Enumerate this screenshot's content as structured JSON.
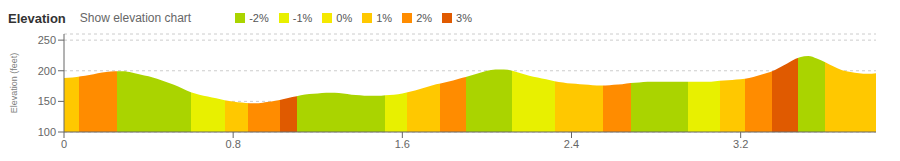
{
  "chart_data": {
    "type": "area",
    "title": "Elevation",
    "subtitle": "Show elevation chart",
    "y_label": "Elevation (feet)",
    "x": [
      0,
      0.04,
      0.08,
      0.12,
      0.16,
      0.2,
      0.24,
      0.28,
      0.32,
      0.36,
      0.4,
      0.44,
      0.48,
      0.52,
      0.56,
      0.6,
      0.64,
      0.68,
      0.72,
      0.76,
      0.8,
      0.84,
      0.88,
      0.92,
      0.96,
      1,
      1.04,
      1.08,
      1.12,
      1.16,
      1.2,
      1.24,
      1.28,
      1.32,
      1.36,
      1.4,
      1.44,
      1.48,
      1.52,
      1.56,
      1.6,
      1.64,
      1.68,
      1.72,
      1.76,
      1.8,
      1.84,
      1.88,
      1.92,
      1.96,
      2,
      2.04,
      2.08,
      2.12,
      2.16,
      2.2,
      2.24,
      2.28,
      2.32,
      2.36,
      2.4,
      2.44,
      2.48,
      2.52,
      2.56,
      2.6,
      2.64,
      2.68,
      2.72,
      2.76,
      2.8,
      2.84,
      2.88,
      2.92,
      2.96,
      3,
      3.04,
      3.08,
      3.12,
      3.16,
      3.2,
      3.24,
      3.28,
      3.32,
      3.36,
      3.4,
      3.44,
      3.48,
      3.52,
      3.56,
      3.6,
      3.64,
      3.68,
      3.72,
      3.76,
      3.8,
      3.84
    ],
    "values": [
      188,
      189,
      191,
      193,
      196,
      198,
      199,
      199,
      197,
      194,
      191,
      187,
      182,
      177,
      171,
      165,
      161,
      158,
      155,
      152,
      150,
      148,
      147,
      147,
      149,
      151,
      154,
      157,
      160,
      162,
      163,
      164,
      164,
      163,
      161,
      160,
      159,
      159,
      160,
      161,
      163,
      166,
      170,
      174,
      178,
      181,
      184,
      188,
      192,
      196,
      200,
      202,
      202,
      200,
      196,
      192,
      189,
      186,
      183,
      181,
      179,
      178,
      177,
      176,
      176,
      177,
      178,
      180,
      181,
      182,
      182,
      182,
      182,
      182,
      182,
      182,
      182,
      183,
      184,
      185,
      186,
      188,
      192,
      196,
      201,
      208,
      216,
      222,
      224,
      220,
      214,
      207,
      201,
      198,
      196,
      195,
      196
    ],
    "xlim": [
      0,
      3.84
    ],
    "xticks": [
      0,
      0.8,
      1.6,
      2.4,
      3.2
    ],
    "ylim": [
      100,
      260
    ],
    "yticks": [
      100,
      150,
      200,
      250
    ],
    "grid": true,
    "legend": "top",
    "legend_entries": [
      {
        "label": "-2%",
        "color": "#aad400"
      },
      {
        "label": "-1%",
        "color": "#e8f000"
      },
      {
        "label": "0%",
        "color": "#f5e800"
      },
      {
        "label": "1%",
        "color": "#ffc800"
      },
      {
        "label": "2%",
        "color": "#ff8c00"
      },
      {
        "label": "3%",
        "color": "#e05a00"
      }
    ],
    "segments": [
      {
        "x0": 0,
        "x1": 0.07,
        "color": "#ffc800"
      },
      {
        "x0": 0.07,
        "x1": 0.25,
        "color": "#ff8c00"
      },
      {
        "x0": 0.25,
        "x1": 0.6,
        "color": "#aad400"
      },
      {
        "x0": 0.6,
        "x1": 0.76,
        "color": "#e8f000"
      },
      {
        "x0": 0.76,
        "x1": 0.87,
        "color": "#ffc800"
      },
      {
        "x0": 0.87,
        "x1": 1.02,
        "color": "#ff8c00"
      },
      {
        "x0": 1.02,
        "x1": 1.1,
        "color": "#e05a00"
      },
      {
        "x0": 1.1,
        "x1": 1.52,
        "color": "#aad400"
      },
      {
        "x0": 1.52,
        "x1": 1.62,
        "color": "#e8f000"
      },
      {
        "x0": 1.62,
        "x1": 1.78,
        "color": "#ffc800"
      },
      {
        "x0": 1.78,
        "x1": 1.9,
        "color": "#ff8c00"
      },
      {
        "x0": 1.9,
        "x1": 2.12,
        "color": "#aad400"
      },
      {
        "x0": 2.12,
        "x1": 2.32,
        "color": "#e8f000"
      },
      {
        "x0": 2.32,
        "x1": 2.55,
        "color": "#ffc800"
      },
      {
        "x0": 2.55,
        "x1": 2.68,
        "color": "#ff8c00"
      },
      {
        "x0": 2.68,
        "x1": 2.95,
        "color": "#aad400"
      },
      {
        "x0": 2.95,
        "x1": 3.1,
        "color": "#e8f000"
      },
      {
        "x0": 3.1,
        "x1": 3.22,
        "color": "#ffc800"
      },
      {
        "x0": 3.22,
        "x1": 3.35,
        "color": "#ff8c00"
      },
      {
        "x0": 3.35,
        "x1": 3.47,
        "color": "#e05a00"
      },
      {
        "x0": 3.47,
        "x1": 3.6,
        "color": "#aad400"
      },
      {
        "x0": 3.6,
        "x1": 3.84,
        "color": "#ffc800"
      }
    ]
  }
}
